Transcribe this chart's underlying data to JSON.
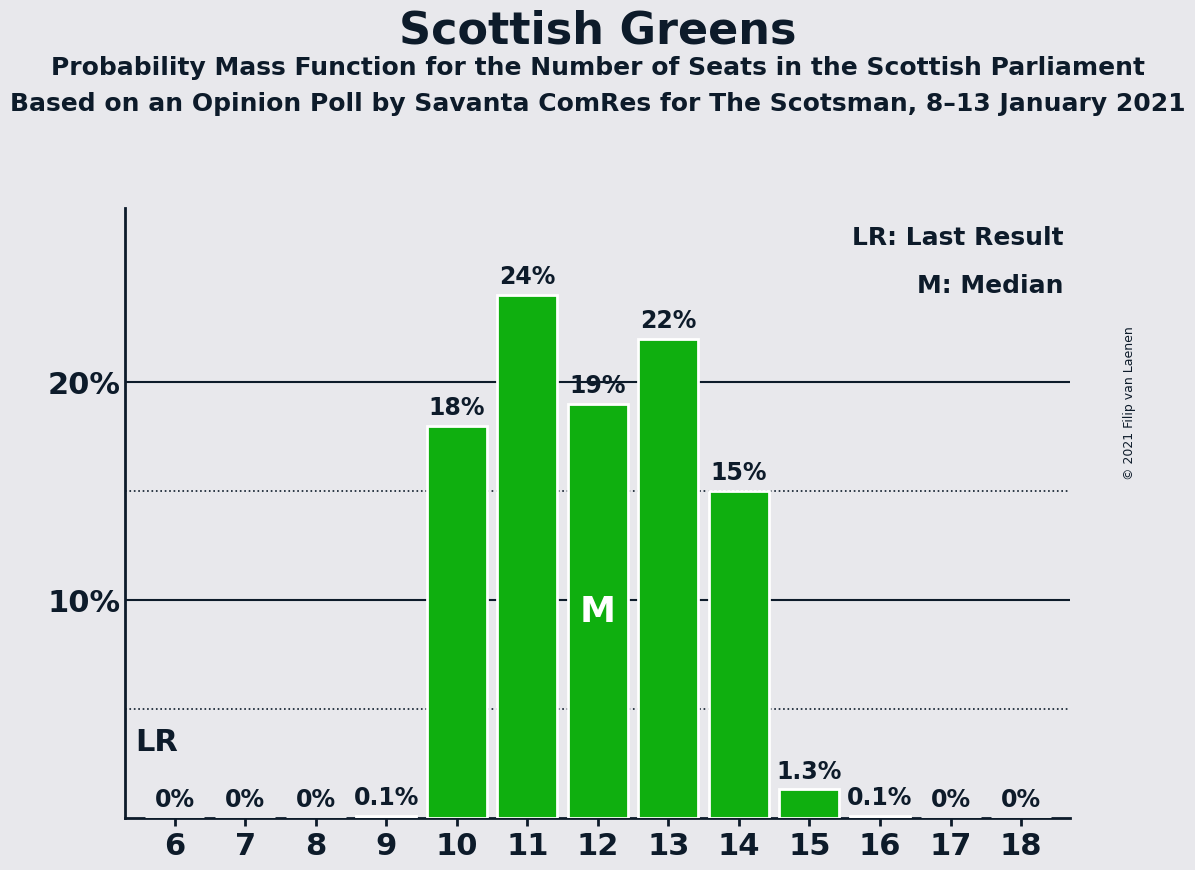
{
  "title": "Scottish Greens",
  "subtitle1": "Probability Mass Function for the Number of Seats in the Scottish Parliament",
  "subtitle2": "Based on an Opinion Poll by Savanta ComRes for The Scotsman, 8–13 January 2021",
  "copyright": "© 2021 Filip van Laenen",
  "categories": [
    6,
    7,
    8,
    9,
    10,
    11,
    12,
    13,
    14,
    15,
    16,
    17,
    18
  ],
  "values": [
    0.0,
    0.0,
    0.0,
    0.1,
    18.0,
    24.0,
    19.0,
    22.0,
    15.0,
    1.3,
    0.1,
    0.0,
    0.0
  ],
  "bar_color": "#0faf0f",
  "background_color": "#e8e8ec",
  "text_color": "#0d1b2a",
  "median_seat": 12,
  "legend_lr": "LR: Last Result",
  "legend_m": "M: Median",
  "dotted_lines": [
    5,
    15
  ],
  "solid_lines": [
    10,
    20
  ],
  "ymax": 28,
  "title_fontsize": 32,
  "subtitle_fontsize": 18,
  "bar_label_fontsize": 17,
  "axis_label_fontsize": 22,
  "legend_fontsize": 18,
  "median_fontsize": 26,
  "lr_fontsize": 22,
  "copyright_fontsize": 9
}
